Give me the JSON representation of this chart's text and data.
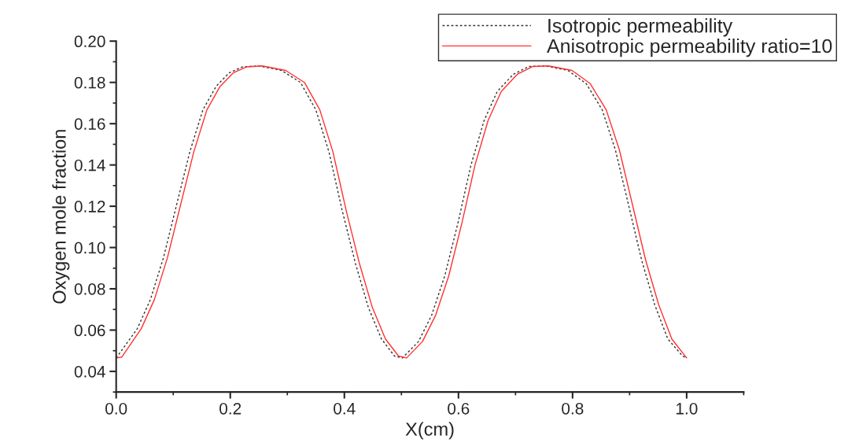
{
  "chart_data": {
    "type": "line",
    "xlabel": "X(cm)",
    "ylabel": "Oxygen mole fraction",
    "xlim": [
      0,
      1.1
    ],
    "xticks": [
      {
        "value": 0,
        "label": "0.0"
      },
      {
        "value": 0.2,
        "label": "0.2"
      },
      {
        "value": 0.4,
        "label": "0.4"
      },
      {
        "value": 0.6,
        "label": "0.6"
      },
      {
        "value": 0.8,
        "label": "0.8"
      },
      {
        "value": 1,
        "label": "1.0"
      }
    ],
    "ylim": [
      0.03,
      0.2
    ],
    "yticks": [
      {
        "value": 0.04,
        "label": "0.04"
      },
      {
        "value": 0.06,
        "label": "0.06"
      },
      {
        "value": 0.08,
        "label": "0.08"
      },
      {
        "value": 0.1,
        "label": "0.10"
      },
      {
        "value": 0.12,
        "label": "0.12"
      },
      {
        "value": 0.14,
        "label": "0.14"
      },
      {
        "value": 0.16,
        "label": "0.16"
      },
      {
        "value": 0.18,
        "label": "0.18"
      },
      {
        "value": 0.2,
        "label": "0.20"
      }
    ],
    "grid": false,
    "legend": "top right",
    "marker": "none",
    "series": [
      {
        "name": "Isotropic permeability",
        "color": "#333333",
        "line_style": "dotted",
        "x": [
          0.0,
          0.037,
          0.06,
          0.083,
          0.106,
          0.129,
          0.152,
          0.175,
          0.198,
          0.221,
          0.25,
          0.29,
          0.323,
          0.35,
          0.373,
          0.396,
          0.419,
          0.442,
          0.465,
          0.488,
          0.502,
          0.53,
          0.553,
          0.576,
          0.599,
          0.622,
          0.645,
          0.668,
          0.696,
          0.723,
          0.752,
          0.792,
          0.824,
          0.852,
          0.875,
          0.898,
          0.921,
          0.944,
          0.967,
          0.993,
          1.0
        ],
        "values": [
          0.0465,
          0.0607,
          0.0748,
          0.0952,
          0.1208,
          0.1463,
          0.1667,
          0.178,
          0.1846,
          0.1875,
          0.188,
          0.1858,
          0.18,
          0.1667,
          0.1463,
          0.1182,
          0.0927,
          0.071,
          0.0557,
          0.0474,
          0.0465,
          0.0545,
          0.0672,
          0.0863,
          0.1118,
          0.14,
          0.1616,
          0.1756,
          0.1839,
          0.1877,
          0.188,
          0.1858,
          0.1794,
          0.1667,
          0.1474,
          0.1208,
          0.094,
          0.0723,
          0.0557,
          0.0474,
          0.0465
        ]
      },
      {
        "name": "Anisotropic permeability ratio=10",
        "color": "#ff3030",
        "line_style": "solid",
        "x": [
          0.0,
          0.0097,
          0.044,
          0.067,
          0.09,
          0.113,
          0.136,
          0.159,
          0.182,
          0.205,
          0.228,
          0.256,
          0.297,
          0.33,
          0.357,
          0.38,
          0.403,
          0.426,
          0.449,
          0.472,
          0.495,
          0.509,
          0.537,
          0.56,
          0.583,
          0.606,
          0.629,
          0.652,
          0.675,
          0.703,
          0.73,
          0.758,
          0.799,
          0.831,
          0.859,
          0.882,
          0.905,
          0.928,
          0.951,
          0.974,
          1.0
        ],
        "values": [
          0.0465,
          0.0469,
          0.0607,
          0.0748,
          0.0952,
          0.1208,
          0.1463,
          0.1667,
          0.178,
          0.1846,
          0.1875,
          0.188,
          0.1858,
          0.18,
          0.1667,
          0.1463,
          0.1182,
          0.0927,
          0.071,
          0.0557,
          0.0474,
          0.0465,
          0.0545,
          0.0672,
          0.0863,
          0.1118,
          0.14,
          0.1616,
          0.1756,
          0.1839,
          0.1877,
          0.188,
          0.1858,
          0.1794,
          0.1667,
          0.1474,
          0.1208,
          0.094,
          0.0723,
          0.0557,
          0.0465
        ]
      }
    ]
  }
}
